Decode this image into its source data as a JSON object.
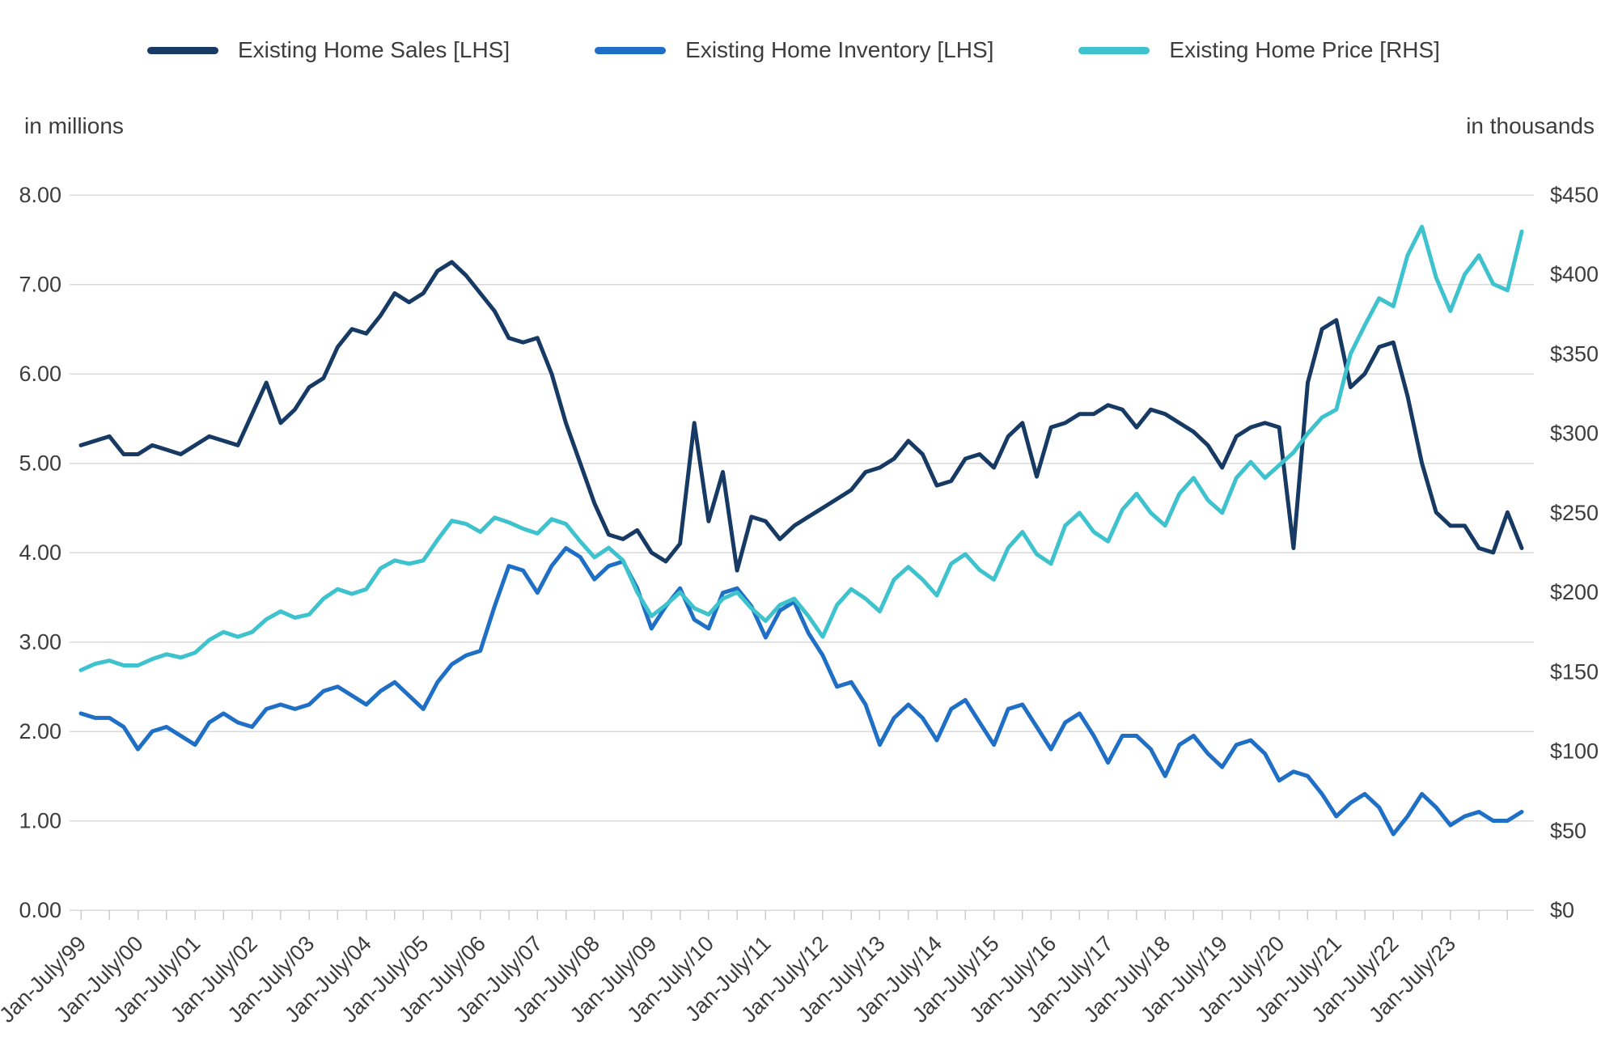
{
  "chart_data": {
    "type": "line",
    "title": "",
    "x_start": 1999.0,
    "x_step": 0.25,
    "x_tick_labels": [
      "Jan-July/99",
      "Jan-July/00",
      "Jan-July/01",
      "Jan-July/02",
      "Jan-July/03",
      "Jan-July/04",
      "Jan-July/05",
      "Jan-July/06",
      "Jan-July/07",
      "Jan-July/08",
      "Jan-July/09",
      "Jan-July/10",
      "Jan-July/11",
      "Jan-July/12",
      "Jan-July/13",
      "Jan-July/14",
      "Jan-July/15",
      "Jan-July/16",
      "Jan-July/17",
      "Jan-July/18",
      "Jan-July/19",
      "Jan-July/20",
      "Jan-July/21",
      "Jan-July/22",
      "Jan-July/23"
    ],
    "left_axis": {
      "title": "in millions",
      "min": 0,
      "max": 8,
      "tick_step": 1,
      "tick_labels": [
        "0.00",
        "1.00",
        "2.00",
        "3.00",
        "4.00",
        "5.00",
        "6.00",
        "7.00",
        "8.00"
      ]
    },
    "right_axis": {
      "title": "in thousands",
      "min": 0,
      "max": 450,
      "tick_step": 50,
      "tick_labels": [
        "$0",
        "$50",
        "$100",
        "$150",
        "$200",
        "$250",
        "$300",
        "$350",
        "$400",
        "$450"
      ]
    },
    "grid": true,
    "legend_position": "top",
    "series": [
      {
        "id": "sales",
        "name": "Existing Home Sales [LHS]",
        "axis": "left",
        "color": "#173A64",
        "values": [
          5.2,
          5.25,
          5.3,
          5.1,
          5.1,
          5.2,
          5.15,
          5.1,
          5.2,
          5.3,
          5.25,
          5.2,
          5.55,
          5.9,
          5.45,
          5.6,
          5.85,
          5.95,
          6.3,
          6.5,
          6.45,
          6.65,
          6.9,
          6.8,
          6.9,
          7.15,
          7.25,
          7.1,
          6.9,
          6.7,
          6.4,
          6.35,
          6.4,
          6.0,
          5.45,
          5.0,
          4.55,
          4.2,
          4.15,
          4.25,
          4.0,
          3.9,
          4.1,
          5.45,
          4.35,
          4.9,
          3.8,
          4.4,
          4.35,
          4.15,
          4.3,
          4.4,
          4.5,
          4.6,
          4.7,
          4.9,
          4.95,
          5.05,
          5.25,
          5.1,
          4.75,
          4.8,
          5.05,
          5.1,
          4.95,
          5.3,
          5.45,
          4.85,
          5.4,
          5.45,
          5.55,
          5.55,
          5.65,
          5.6,
          5.4,
          5.6,
          5.55,
          5.45,
          5.35,
          5.2,
          4.95,
          5.3,
          5.4,
          5.45,
          5.4,
          4.05,
          5.9,
          6.5,
          6.6,
          5.85,
          6.0,
          6.3,
          6.35,
          5.75,
          5.0,
          4.45,
          4.3,
          4.3,
          4.05,
          4.0,
          4.45,
          4.05
        ]
      },
      {
        "id": "inventory",
        "name": "Existing Home Inventory [LHS]",
        "axis": "left",
        "color": "#1E6FC5",
        "values": [
          2.2,
          2.15,
          2.15,
          2.05,
          1.8,
          2.0,
          2.05,
          1.95,
          1.85,
          2.1,
          2.2,
          2.1,
          2.05,
          2.25,
          2.3,
          2.25,
          2.3,
          2.45,
          2.5,
          2.4,
          2.3,
          2.45,
          2.55,
          2.4,
          2.25,
          2.55,
          2.75,
          2.85,
          2.9,
          3.4,
          3.85,
          3.8,
          3.55,
          3.85,
          4.05,
          3.95,
          3.7,
          3.85,
          3.9,
          3.6,
          3.15,
          3.4,
          3.6,
          3.25,
          3.15,
          3.55,
          3.6,
          3.4,
          3.05,
          3.35,
          3.45,
          3.1,
          2.85,
          2.5,
          2.55,
          2.3,
          1.85,
          2.15,
          2.3,
          2.15,
          1.9,
          2.25,
          2.35,
          2.1,
          1.85,
          2.25,
          2.3,
          2.05,
          1.8,
          2.1,
          2.2,
          1.95,
          1.65,
          1.95,
          1.95,
          1.8,
          1.5,
          1.85,
          1.95,
          1.75,
          1.6,
          1.85,
          1.9,
          1.75,
          1.45,
          1.55,
          1.5,
          1.3,
          1.05,
          1.2,
          1.3,
          1.15,
          0.85,
          1.05,
          1.3,
          1.15,
          0.95,
          1.05,
          1.1,
          1.0,
          1.0,
          1.1
        ]
      },
      {
        "id": "price",
        "name": "Existing Home Price [RHS]",
        "axis": "right",
        "color": "#3EC2CE",
        "values": [
          151,
          155,
          157,
          154,
          154,
          158,
          161,
          159,
          162,
          170,
          175,
          172,
          175,
          183,
          188,
          184,
          186,
          196,
          202,
          199,
          202,
          215,
          220,
          218,
          220,
          233,
          245,
          243,
          238,
          247,
          244,
          240,
          237,
          246,
          243,
          232,
          222,
          228,
          220,
          200,
          185,
          192,
          200,
          190,
          186,
          196,
          200,
          190,
          182,
          192,
          196,
          185,
          172,
          192,
          202,
          196,
          188,
          208,
          216,
          208,
          198,
          218,
          224,
          214,
          208,
          228,
          238,
          224,
          218,
          242,
          250,
          238,
          232,
          252,
          262,
          250,
          242,
          262,
          272,
          258,
          250,
          272,
          282,
          272,
          280,
          288,
          300,
          310,
          315,
          350,
          368,
          385,
          380,
          412,
          430,
          398,
          377,
          400,
          412,
          394,
          390,
          427
        ]
      }
    ]
  }
}
